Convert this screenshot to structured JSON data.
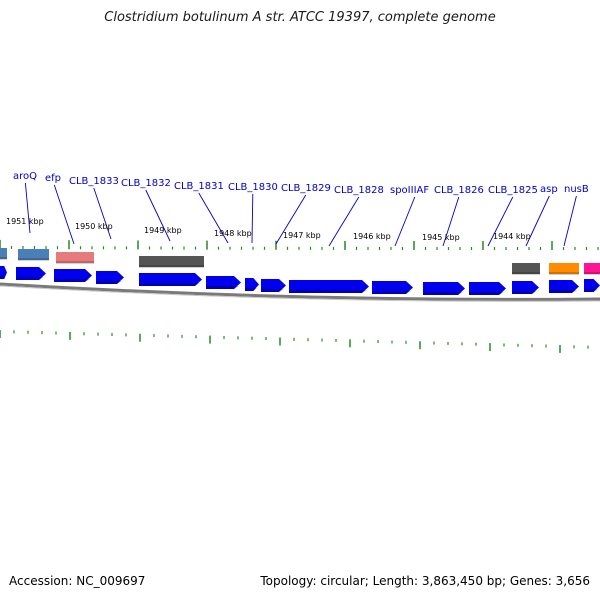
{
  "title": "Clostridium botulinum A str. ATCC 19397, complete genome",
  "footer": {
    "accession": "Accession: NC_009697",
    "topology": "Topology: circular; Length: 3,863,450 bp; Genes: 3,656"
  },
  "colors": {
    "cds": "#0000ee",
    "rrna_gray": "#555555",
    "blue_light": "#4a7fb8",
    "salmon": "#e77b7b",
    "orange": "#ff8c00",
    "magenta": "#ff1493",
    "tick": "#228b22",
    "label": "#0000cc",
    "backbone": "#7a7a7a"
  },
  "gene_labels": [
    "aroQ",
    "efp",
    "CLB_1833",
    "CLB_1832",
    "CLB_1831",
    "CLB_1830",
    "CLB_1829",
    "CLB_1828",
    "spoIIIAF",
    "CLB_1826",
    "CLB_1825",
    "asp",
    "nusB"
  ],
  "kbp_labels": [
    "1951 kbp",
    "1950 kbp",
    "1949 kbp",
    "1948 kbp",
    "1947 kbp",
    "1946 kbp",
    "1945 kbp",
    "1944 kbp"
  ]
}
